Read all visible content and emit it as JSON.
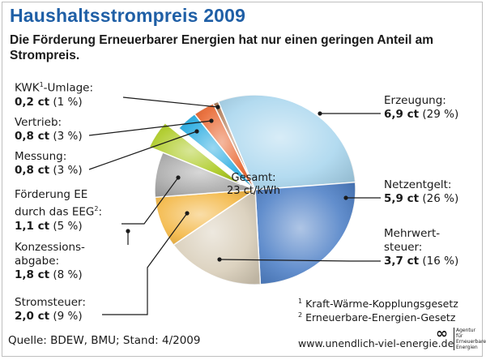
{
  "title": "Haushaltsstrompreis 2009",
  "subtitle": "Die Förderung Erneuerbarer Energien hat nur einen geringen Anteil am Strompreis.",
  "center": {
    "line1": "Gesamt:",
    "line2": "23 ct/kWh"
  },
  "labels": {
    "kwk": {
      "name": "KWK",
      "sup": "1",
      "suffix": "-Umlage:",
      "value": "0,2 ct",
      "pct": "(1 %)"
    },
    "vertrieb": {
      "name": "Vertrieb:",
      "value": "0,8 ct",
      "pct": "(3 %)"
    },
    "messung": {
      "name": "Messung:",
      "value": "0,8 ct",
      "pct": "(3 %)"
    },
    "eeg": {
      "line1": "Förderung EE",
      "line2": "durch das EEG",
      "sup": "2",
      "suffix": ":",
      "value": "1,1 ct",
      "pct": "(5 %)"
    },
    "konz": {
      "line1": "Konzessions-",
      "line2": "abgabe:",
      "value": "1,8 ct",
      "pct": "(8 %)"
    },
    "strom": {
      "name": "Stromsteuer:",
      "value": "2,0 ct",
      "pct": "(9 %)"
    },
    "erz": {
      "name": "Erzeugung:",
      "value": "6,9 ct",
      "pct": "(29 %)"
    },
    "netz": {
      "name": "Netzentgelt:",
      "value": "5,9 ct",
      "pct": "(26 %)"
    },
    "mwst": {
      "line1": "Mehrwert-",
      "line2": "steuer:",
      "value": "3,7 ct",
      "pct": "(16 %)"
    }
  },
  "footnotes": {
    "n1_mark": "1",
    "n1": "Kraft-Wärme-Kopplungsgesetz",
    "n2_mark": "2",
    "n2": "Erneuerbare-Energien-Gesetz"
  },
  "source": "Quelle: BDEW, BMU; Stand: 4/2009",
  "url": "www.unendlich-viel-energie.de",
  "logo": {
    "mark": "∞",
    "text": "Agentur für Erneuerbare Energien"
  },
  "chart_data": {
    "type": "pie",
    "title": "Haushaltsstrompreis 2009",
    "total": "23 ct/kWh",
    "unit": "ct/kWh",
    "slices": [
      {
        "label": "Erzeugung",
        "value": 6.9,
        "percent": 29,
        "color": "#a9d6ee"
      },
      {
        "label": "Netzentgelt",
        "value": 5.9,
        "percent": 26,
        "color": "#4d7fc6"
      },
      {
        "label": "Mehrwertsteuer",
        "value": 3.7,
        "percent": 16,
        "color": "#d8cdb8"
      },
      {
        "label": "Stromsteuer",
        "value": 2.0,
        "percent": 9,
        "color": "#f3b53f"
      },
      {
        "label": "Konzessionsabgabe",
        "value": 1.8,
        "percent": 8,
        "color": "#a7a7a7"
      },
      {
        "label": "Förderung EE durch das EEG",
        "value": 1.1,
        "percent": 5,
        "color": "#a9c81a",
        "exploded": true
      },
      {
        "label": "Messung",
        "value": 0.8,
        "percent": 3,
        "color": "#1fa8e0"
      },
      {
        "label": "Vertrieb",
        "value": 0.8,
        "percent": 3,
        "color": "#e8622a"
      },
      {
        "label": "KWK-Umlage",
        "value": 0.2,
        "percent": 1,
        "color": "#b07a55"
      }
    ]
  }
}
